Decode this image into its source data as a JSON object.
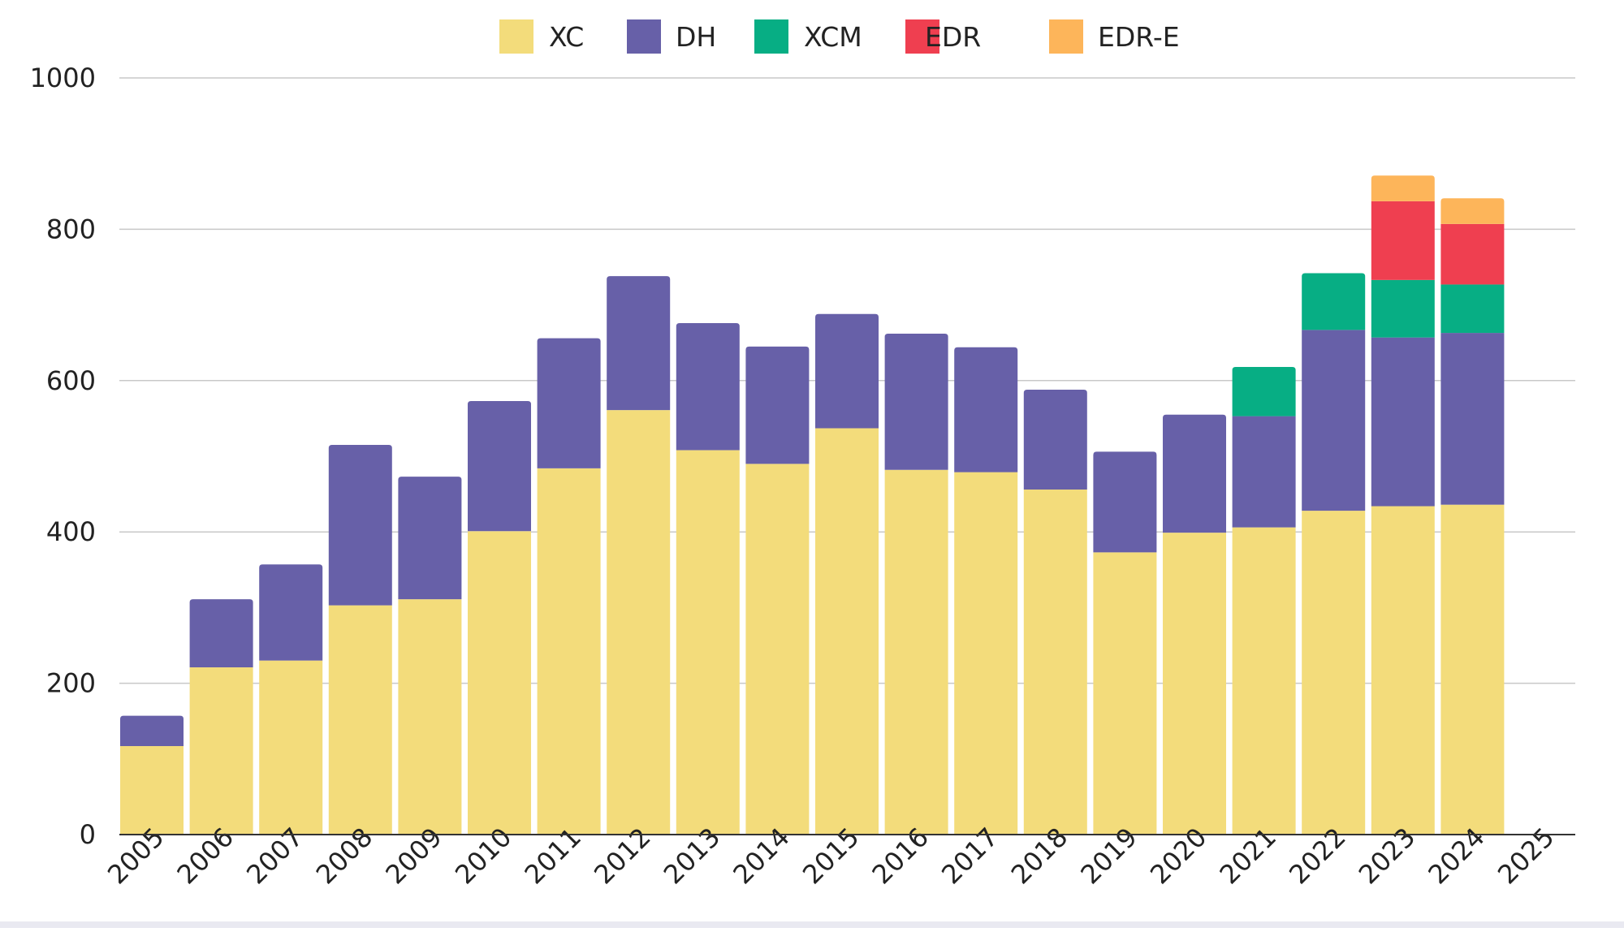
{
  "chart_data": {
    "type": "bar",
    "stacked": true,
    "categories": [
      "2005",
      "2006",
      "2007",
      "2008",
      "2009",
      "2010",
      "2011",
      "2012",
      "2013",
      "2014",
      "2015",
      "2016",
      "2017",
      "2018",
      "2019",
      "2020",
      "2021",
      "2022",
      "2023",
      "2024",
      "2025"
    ],
    "series": [
      {
        "name": "XC",
        "color": "#f3dc7b",
        "values": [
          117,
          221,
          230,
          303,
          311,
          401,
          484,
          561,
          508,
          490,
          537,
          482,
          479,
          456,
          373,
          399,
          406,
          428,
          434,
          436,
          0
        ]
      },
      {
        "name": "DH",
        "color": "#6760a8",
        "values": [
          40,
          90,
          127,
          212,
          162,
          172,
          172,
          177,
          168,
          155,
          151,
          180,
          165,
          132,
          133,
          156,
          147,
          239,
          223,
          227,
          0
        ]
      },
      {
        "name": "XCM",
        "color": "#07ae84",
        "values": [
          0,
          0,
          0,
          0,
          0,
          0,
          0,
          0,
          0,
          0,
          0,
          0,
          0,
          0,
          0,
          0,
          65,
          75,
          76,
          64,
          0
        ]
      },
      {
        "name": "EDR",
        "color": "#ef3f50",
        "values": [
          0,
          0,
          0,
          0,
          0,
          0,
          0,
          0,
          0,
          0,
          0,
          0,
          0,
          0,
          0,
          0,
          0,
          0,
          104,
          80,
          0
        ]
      },
      {
        "name": "EDR-E",
        "color": "#fdb55a",
        "values": [
          0,
          0,
          0,
          0,
          0,
          0,
          0,
          0,
          0,
          0,
          0,
          0,
          0,
          0,
          0,
          0,
          0,
          0,
          34,
          34,
          0
        ]
      }
    ],
    "y_ticks": [
      "0",
      "200",
      "400",
      "600",
      "800",
      "1000"
    ],
    "ylim": [
      0,
      1000
    ],
    "grid": true,
    "legend_position": "top-center"
  }
}
